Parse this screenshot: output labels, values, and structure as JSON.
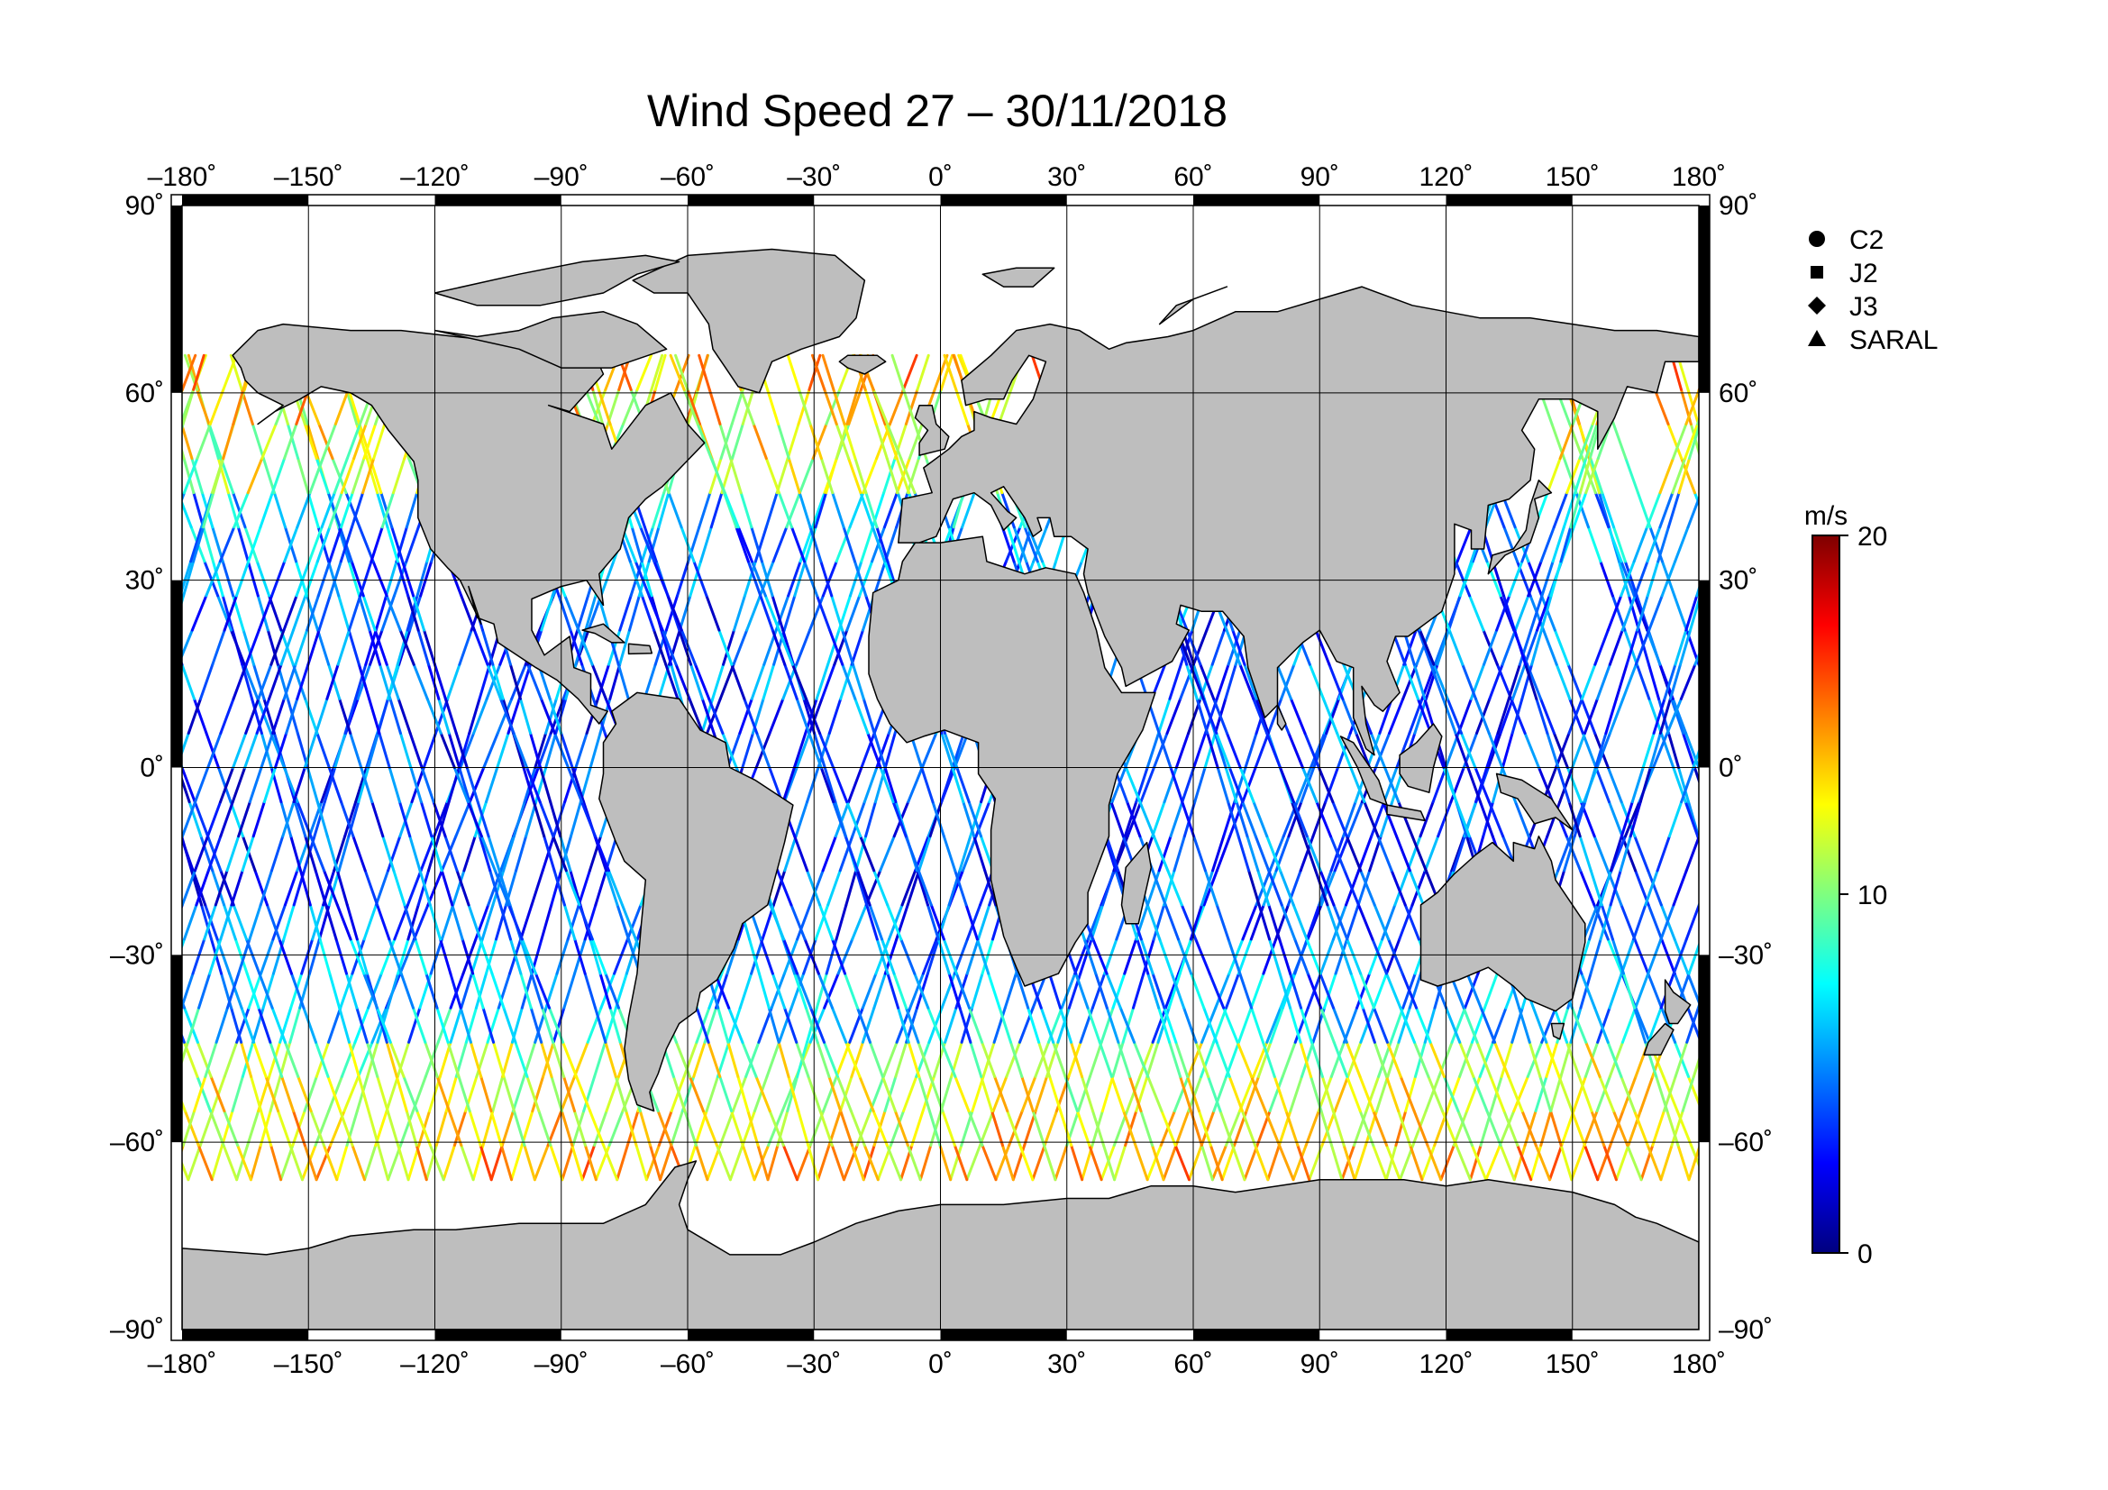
{
  "title": "Wind Speed 27 – 30/11/2018",
  "x_ticks": [
    {
      "value": -180,
      "label": "–180˚"
    },
    {
      "value": -150,
      "label": "–150˚"
    },
    {
      "value": -120,
      "label": "–120˚"
    },
    {
      "value": -90,
      "label": "–90˚"
    },
    {
      "value": -60,
      "label": "–60˚"
    },
    {
      "value": -30,
      "label": "–30˚"
    },
    {
      "value": 0,
      "label": "0˚"
    },
    {
      "value": 30,
      "label": "30˚"
    },
    {
      "value": 60,
      "label": "60˚"
    },
    {
      "value": 90,
      "label": "90˚"
    },
    {
      "value": 120,
      "label": "120˚"
    },
    {
      "value": 150,
      "label": "150˚"
    },
    {
      "value": 180,
      "label": "180˚"
    }
  ],
  "y_ticks": [
    {
      "value": 90,
      "label": "90˚"
    },
    {
      "value": 60,
      "label": "60˚"
    },
    {
      "value": 30,
      "label": "30˚"
    },
    {
      "value": 0,
      "label": "0˚"
    },
    {
      "value": -30,
      "label": "–30˚"
    },
    {
      "value": -60,
      "label": "–60˚"
    },
    {
      "value": -90,
      "label": "–90˚"
    }
  ],
  "legend": [
    {
      "label": "C2",
      "marker": "circle"
    },
    {
      "label": "J2",
      "marker": "square"
    },
    {
      "label": "J3",
      "marker": "diamond"
    },
    {
      "label": "SARAL",
      "marker": "triangle"
    }
  ],
  "colorbar": {
    "unit": "m/s",
    "min": 0,
    "max": 20,
    "ticks": [
      {
        "value": 20,
        "label": "20"
      },
      {
        "value": 10,
        "label": "10"
      },
      {
        "value": 0,
        "label": "0"
      }
    ],
    "colors": [
      "#00007f",
      "#0000ff",
      "#007fff",
      "#00ffff",
      "#7fff7f",
      "#ffff00",
      "#ff7f00",
      "#ff0000",
      "#7f0000"
    ]
  },
  "map": {
    "lon_range": [
      -180,
      180
    ],
    "lat_range": [
      -90,
      90
    ],
    "land_color": "#bebebe",
    "ocean_color": "#ffffff",
    "grid_interval_deg": 30,
    "track_lat_limits": [
      -66,
      66
    ]
  }
}
